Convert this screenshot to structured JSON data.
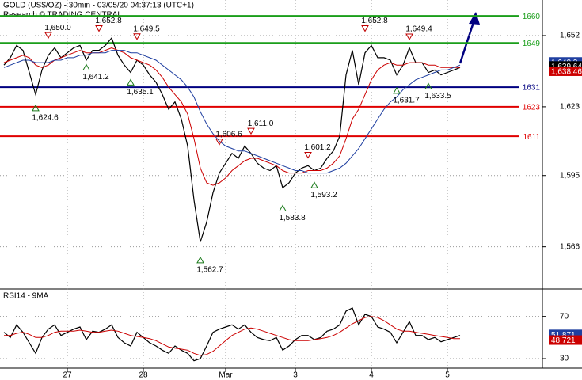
{
  "chart_data": [
    {
      "type": "line",
      "title": "GOLD (US$/OZ) - 30min - 03/05/20 04:37:13 (UTC+1)",
      "subtitle": "Research © TRADING CENTRAL",
      "x": [
        0,
        1,
        2,
        3,
        4,
        5,
        6,
        7,
        8,
        9,
        10,
        11,
        12,
        13,
        14,
        15,
        16,
        17,
        18,
        19,
        20,
        21,
        22,
        23,
        24,
        25,
        26,
        27,
        28,
        29,
        30,
        31,
        32,
        33,
        34,
        35,
        36,
        37,
        38,
        39,
        40,
        41,
        42,
        43,
        44,
        45,
        46,
        47,
        48,
        49,
        50,
        51,
        52,
        53,
        54,
        55,
        56,
        57,
        58,
        59,
        60,
        61,
        62,
        63,
        64,
        65,
        66,
        67,
        68,
        69,
        70,
        71,
        72
      ],
      "xlim": [
        -0.625,
        85
      ],
      "xticks": [
        {
          "value": 10,
          "label": "27"
        },
        {
          "value": 22,
          "label": "28"
        },
        {
          "value": 35,
          "label": "Mar"
        },
        {
          "value": 46,
          "label": "3"
        },
        {
          "value": 58,
          "label": "4"
        },
        {
          "value": 70,
          "label": "5"
        }
      ],
      "ylim": [
        1548.8,
        1666.5
      ],
      "yticks": [
        {
          "value": 1652,
          "label": "1,652"
        },
        {
          "value": 1623,
          "label": "1,623"
        },
        {
          "value": 1595,
          "label": "1,595"
        },
        {
          "value": 1566,
          "label": "1,566"
        }
      ],
      "grid": true,
      "series": [
        {
          "color": "#000000",
          "values": [
            1640,
            1643,
            1648,
            1646,
            1637,
            1628,
            1638,
            1644,
            1647,
            1643,
            1645,
            1647,
            1648,
            1642,
            1646,
            1646,
            1648,
            1651,
            1644,
            1640,
            1637,
            1642,
            1640,
            1636,
            1633,
            1628,
            1622,
            1625,
            1618,
            1607,
            1585,
            1568,
            1576,
            1588,
            1596,
            1600,
            1604,
            1602,
            1607,
            1604,
            1600,
            1598,
            1597,
            1599,
            1590,
            1592,
            1596,
            1598,
            1599,
            1597,
            1598,
            1602,
            1605,
            1611,
            1636,
            1646,
            1632,
            1645,
            1648,
            1643,
            1643,
            1642,
            1636,
            1640,
            1647,
            1641,
            1641,
            1637,
            1638,
            1636,
            1637,
            1638,
            1639
          ]
        },
        {
          "color": "#cc0000",
          "values": [
            1641,
            1642,
            1643,
            1644,
            1643,
            1640,
            1639,
            1640,
            1642,
            1643,
            1644,
            1645,
            1646,
            1645,
            1645,
            1645,
            1646,
            1647,
            1646,
            1645,
            1643,
            1642,
            1641,
            1640,
            1638,
            1635,
            1631,
            1628,
            1625,
            1620,
            1610,
            1598,
            1592,
            1591,
            1592,
            1594,
            1597,
            1599,
            1601,
            1602,
            1602,
            1601,
            1600,
            1599,
            1597,
            1596,
            1596,
            1596,
            1597,
            1597,
            1597,
            1598,
            1600,
            1603,
            1610,
            1618,
            1622,
            1628,
            1634,
            1638,
            1640,
            1641,
            1640,
            1640,
            1641,
            1641,
            1641,
            1640,
            1640,
            1639,
            1639,
            1639,
            1639
          ]
        },
        {
          "color": "#1f3fa0",
          "values": [
            1639,
            1640,
            1641,
            1642,
            1642,
            1641,
            1641,
            1641,
            1642,
            1642,
            1643,
            1643,
            1644,
            1644,
            1645,
            1645,
            1645,
            1646,
            1646,
            1646,
            1645,
            1645,
            1644,
            1643,
            1642,
            1640,
            1638,
            1636,
            1634,
            1631,
            1627,
            1621,
            1616,
            1612,
            1609,
            1607,
            1606,
            1605,
            1605,
            1604,
            1603,
            1602,
            1601,
            1600,
            1599,
            1598,
            1597,
            1597,
            1596,
            1596,
            1596,
            1596,
            1597,
            1598,
            1600,
            1603,
            1606,
            1610,
            1614,
            1618,
            1622,
            1625,
            1627,
            1630,
            1632,
            1634,
            1635,
            1636,
            1637,
            1638,
            1638,
            1639,
            1640
          ]
        }
      ],
      "levels": [
        {
          "value": 1660,
          "color": "#1a9e1a"
        },
        {
          "value": 1649,
          "color": "#1a9e1a"
        },
        {
          "value": 1631,
          "color": "#000080"
        },
        {
          "value": 1623,
          "color": "#e00000"
        },
        {
          "value": 1611,
          "color": "#e00000"
        }
      ],
      "annotations": [
        {
          "x": 7,
          "value": 1650.0,
          "label": "1,650.0",
          "marker": "down"
        },
        {
          "x": 15,
          "value": 1652.8,
          "label": "1,652.8",
          "marker": "down"
        },
        {
          "x": 21,
          "value": 1649.5,
          "label": "1,649.5",
          "marker": "down"
        },
        {
          "x": 13,
          "value": 1641.2,
          "label": "1,641.2",
          "marker": "up"
        },
        {
          "x": 20,
          "value": 1635.1,
          "label": "1,635.1",
          "marker": "up"
        },
        {
          "x": 5,
          "value": 1624.6,
          "label": "1,624.6",
          "marker": "up"
        },
        {
          "x": 34,
          "value": 1606.6,
          "label": "1,606.6",
          "marker": "down"
        },
        {
          "x": 39,
          "value": 1611.0,
          "label": "1,611.0",
          "marker": "down"
        },
        {
          "x": 48,
          "value": 1601.2,
          "label": "1,601.2",
          "marker": "down"
        },
        {
          "x": 49,
          "value": 1593.2,
          "label": "1,593.2",
          "marker": "up"
        },
        {
          "x": 44,
          "value": 1583.8,
          "label": "1,583.8",
          "marker": "up"
        },
        {
          "x": 31,
          "value": 1562.7,
          "label": "1,562.7",
          "marker": "up"
        },
        {
          "x": 57,
          "value": 1652.8,
          "label": "1,652.8",
          "marker": "down"
        },
        {
          "x": 64,
          "value": 1649.4,
          "label": "1,649.4",
          "marker": "down"
        },
        {
          "x": 62,
          "value": 1631.7,
          "label": "1,631.7",
          "marker": "up"
        },
        {
          "x": 67,
          "value": 1633.5,
          "label": "1,633.5",
          "marker": "up"
        }
      ],
      "price_labels": [
        {
          "value": 1640.3,
          "label": "1,640.3",
          "color": "#1f3fa0"
        },
        {
          "value": 1639.64,
          "label": "1,639.64",
          "color": "#000000"
        },
        {
          "value": 1638.46,
          "label": "1,638.46",
          "color": "#cc0000"
        }
      ]
    },
    {
      "type": "line",
      "title": "RSI14 - 9MA",
      "x": [
        0,
        1,
        2,
        3,
        4,
        5,
        6,
        7,
        8,
        9,
        10,
        11,
        12,
        13,
        14,
        15,
        16,
        17,
        18,
        19,
        20,
        21,
        22,
        23,
        24,
        25,
        26,
        27,
        28,
        29,
        30,
        31,
        32,
        33,
        34,
        35,
        36,
        37,
        38,
        39,
        40,
        41,
        42,
        43,
        44,
        45,
        46,
        47,
        48,
        49,
        50,
        51,
        52,
        53,
        54,
        55,
        56,
        57,
        58,
        59,
        60,
        61,
        62,
        63,
        64,
        65,
        66,
        67,
        68,
        69,
        70,
        71,
        72
      ],
      "xlim": [
        -0.625,
        85
      ],
      "ylim": [
        21,
        96
      ],
      "yticks": [
        70,
        30
      ],
      "grid": true,
      "series": [
        {
          "color": "#000000",
          "values": [
            55,
            50,
            62,
            55,
            45,
            35,
            50,
            58,
            62,
            52,
            55,
            58,
            60,
            48,
            56,
            55,
            58,
            62,
            50,
            45,
            42,
            55,
            50,
            45,
            42,
            38,
            35,
            42,
            38,
            35,
            28,
            30,
            42,
            55,
            58,
            60,
            62,
            58,
            62,
            55,
            50,
            48,
            47,
            50,
            38,
            42,
            48,
            52,
            52,
            48,
            50,
            56,
            58,
            62,
            75,
            78,
            62,
            72,
            70,
            60,
            58,
            55,
            45,
            55,
            65,
            52,
            52,
            48,
            50,
            46,
            48,
            50,
            52
          ]
        },
        {
          "color": "#cc0000",
          "values": [
            52,
            52,
            54,
            55,
            53,
            50,
            50,
            52,
            55,
            56,
            56,
            56,
            57,
            56,
            55,
            55,
            56,
            57,
            56,
            54,
            52,
            51,
            50,
            49,
            47,
            44,
            41,
            40,
            39,
            38,
            35,
            33,
            34,
            37,
            42,
            47,
            52,
            55,
            58,
            59,
            58,
            56,
            54,
            52,
            50,
            48,
            47,
            47,
            47,
            48,
            49,
            50,
            52,
            55,
            59,
            63,
            66,
            69,
            70,
            69,
            66,
            62,
            58,
            56,
            56,
            55,
            54,
            53,
            52,
            51,
            50,
            49,
            49
          ]
        }
      ],
      "price_labels": [
        {
          "value": 51.871,
          "label": "51.871",
          "color": "#1f3fa0"
        },
        {
          "value": 48.721,
          "label": "48.721",
          "color": "#cc0000"
        }
      ]
    }
  ]
}
